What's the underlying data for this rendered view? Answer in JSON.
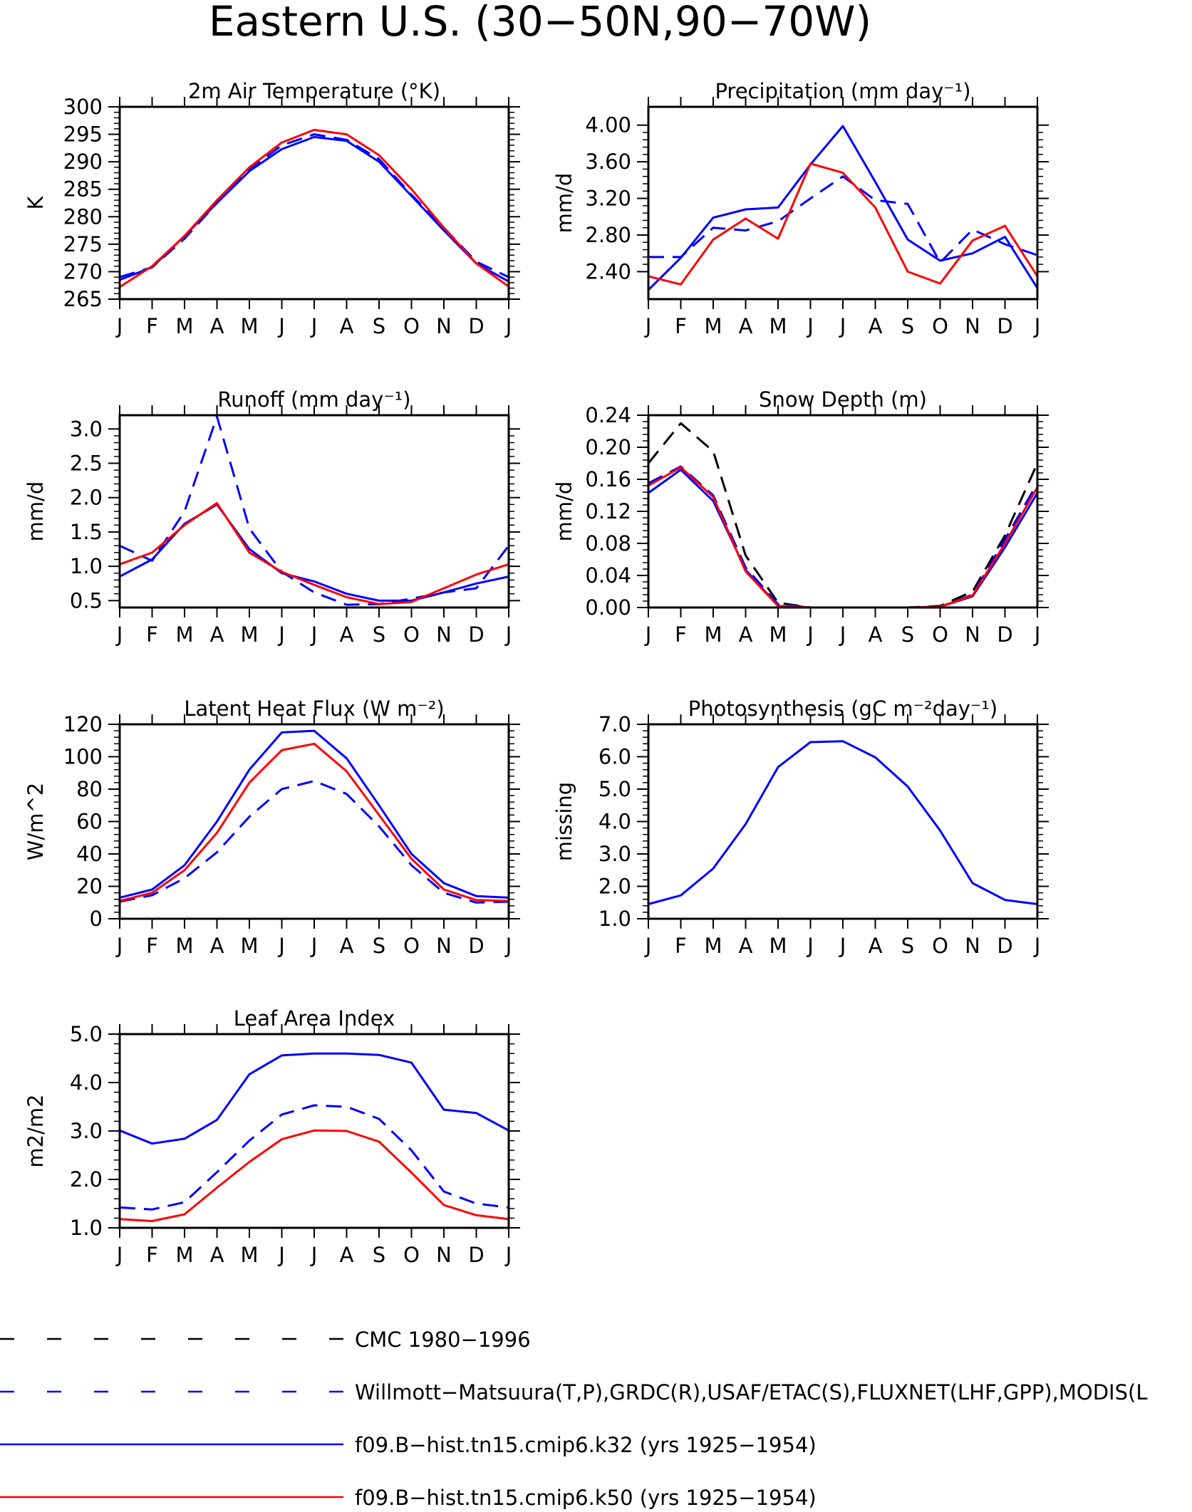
{
  "figure": {
    "title": "Eastern U.S. (30−50N,90−70W)",
    "months": [
      "J",
      "F",
      "M",
      "A",
      "M",
      "J",
      "J",
      "A",
      "S",
      "O",
      "N",
      "D",
      "J"
    ]
  },
  "colors": {
    "red": "#ff0000",
    "blue": "#0000ff",
    "black": "#000000"
  },
  "legend": {
    "position": "bottom",
    "entries": [
      {
        "label": "CMC 1980−1996",
        "color": "#000000",
        "dash": true
      },
      {
        "label": "Willmott−Matsuura(T,P),GRDC(R),USAF/ETAC(S),FLUXNET(LHF,GPP),MODIS(L",
        "color": "#0000ff",
        "dash": true
      },
      {
        "label": "f09.B−hist.tn15.cmip6.k32 (yrs 1925−1954)",
        "color": "#0000ff",
        "dash": false
      },
      {
        "label": "f09.B−hist.tn15.cmip6.k50 (yrs 1925−1954)",
        "color": "#ff0000",
        "dash": false
      }
    ]
  },
  "chart_data": [
    {
      "type": "line",
      "title": "2m Air Temperature (°K)",
      "ylabel": "K",
      "ylim": [
        265,
        300
      ],
      "yticks": [
        265,
        270,
        275,
        280,
        285,
        290,
        295,
        300
      ],
      "yticklabels": [
        "265",
        "270",
        "275",
        "280",
        "285",
        "290",
        "295",
        "300"
      ],
      "categories": [
        "J",
        "F",
        "M",
        "A",
        "M",
        "J",
        "J",
        "A",
        "S",
        "O",
        "N",
        "D",
        "J"
      ],
      "series": [
        {
          "color": "#0000ff",
          "dash": true,
          "values": [
            269,
            270.8,
            276,
            282.5,
            288.5,
            293,
            295,
            294,
            290.5,
            284,
            278,
            271.8,
            269
          ]
        },
        {
          "color": "#0000ff",
          "dash": false,
          "values": [
            268.5,
            270.8,
            276.5,
            282.5,
            288.3,
            292.3,
            294.5,
            293.8,
            290,
            283.8,
            277.5,
            271.5,
            268.2
          ]
        },
        {
          "color": "#ff0000",
          "dash": false,
          "values": [
            267.2,
            271,
            276.5,
            283,
            289,
            293.5,
            295.8,
            295,
            291.2,
            285,
            278,
            271.5,
            267.3
          ]
        }
      ]
    },
    {
      "type": "line",
      "title": "Precipitation (mm day⁻¹)",
      "ylabel": "mm/d",
      "ylim": [
        2.1,
        4.2
      ],
      "yticks": [
        2.4,
        2.8,
        3.2,
        3.6,
        4.0
      ],
      "yticklabels": [
        "2.40",
        "2.80",
        "3.20",
        "3.60",
        "4.00"
      ],
      "categories": [
        "J",
        "F",
        "M",
        "A",
        "M",
        "J",
        "J",
        "A",
        "S",
        "O",
        "N",
        "D",
        "J"
      ],
      "series": [
        {
          "color": "#0000ff",
          "dash": true,
          "values": [
            2.56,
            2.56,
            2.88,
            2.85,
            2.95,
            3.2,
            3.44,
            3.18,
            3.14,
            2.5,
            2.86,
            2.7,
            2.58
          ]
        },
        {
          "color": "#0000ff",
          "dash": false,
          "values": [
            2.2,
            2.55,
            2.99,
            3.08,
            3.1,
            3.57,
            3.99,
            3.38,
            2.75,
            2.52,
            2.6,
            2.78,
            2.22
          ]
        },
        {
          "color": "#ff0000",
          "dash": false,
          "values": [
            2.35,
            2.26,
            2.75,
            2.98,
            2.76,
            3.58,
            3.48,
            3.1,
            2.4,
            2.27,
            2.74,
            2.9,
            2.35
          ]
        }
      ]
    },
    {
      "type": "line",
      "title": "Runoff (mm day⁻¹)",
      "ylabel": "mm/d",
      "ylim": [
        0.4,
        3.2
      ],
      "yticks": [
        0.5,
        1.0,
        1.5,
        2.0,
        2.5,
        3.0
      ],
      "yticklabels": [
        "0.5",
        "1.0",
        "1.5",
        "2.0",
        "2.5",
        "3.0"
      ],
      "categories": [
        "J",
        "F",
        "M",
        "A",
        "M",
        "J",
        "J",
        "A",
        "S",
        "O",
        "N",
        "D",
        "J"
      ],
      "series": [
        {
          "color": "#0000ff",
          "dash": true,
          "values": [
            1.3,
            1.08,
            1.8,
            3.18,
            1.55,
            0.92,
            0.62,
            0.44,
            0.45,
            0.53,
            0.62,
            0.68,
            1.3
          ]
        },
        {
          "color": "#0000ff",
          "dash": false,
          "values": [
            0.85,
            1.1,
            1.62,
            1.9,
            1.25,
            0.9,
            0.78,
            0.6,
            0.5,
            0.5,
            0.62,
            0.75,
            0.85
          ]
        },
        {
          "color": "#ff0000",
          "dash": false,
          "values": [
            1.03,
            1.2,
            1.6,
            1.92,
            1.2,
            0.92,
            0.73,
            0.55,
            0.45,
            0.48,
            0.68,
            0.88,
            1.03
          ]
        }
      ]
    },
    {
      "type": "line",
      "title": "Snow Depth (m)",
      "ylabel": "mm/d",
      "ylim": [
        0,
        0.24
      ],
      "yticks": [
        0,
        0.04,
        0.08,
        0.12,
        0.16,
        0.2,
        0.24
      ],
      "yticklabels": [
        "0.00",
        "0.04",
        "0.08",
        "0.12",
        "0.16",
        "0.20",
        "0.24"
      ],
      "categories": [
        "J",
        "F",
        "M",
        "A",
        "M",
        "J",
        "J",
        "A",
        "S",
        "O",
        "N",
        "D",
        "J"
      ],
      "series": [
        {
          "color": "#000000",
          "dash": true,
          "values": [
            0.18,
            0.23,
            0.195,
            0.065,
            0.006,
            0.0,
            0.0,
            0.0,
            0.0,
            0.002,
            0.02,
            0.09,
            0.18
          ]
        },
        {
          "color": "#0000ff",
          "dash": true,
          "values": [
            0.155,
            0.176,
            0.14,
            0.05,
            0.004,
            0.0,
            0.0,
            0.0,
            0.0,
            0.001,
            0.016,
            0.085,
            0.155
          ]
        },
        {
          "color": "#0000ff",
          "dash": false,
          "values": [
            0.143,
            0.172,
            0.133,
            0.047,
            0.002,
            0.0,
            0.0,
            0.0,
            0.0,
            0.001,
            0.014,
            0.075,
            0.143
          ]
        },
        {
          "color": "#ff0000",
          "dash": false,
          "values": [
            0.152,
            0.175,
            0.138,
            0.045,
            0.002,
            0.0,
            0.0,
            0.0,
            0.0,
            0.001,
            0.015,
            0.08,
            0.15
          ]
        }
      ]
    },
    {
      "type": "line",
      "title": "Latent Heat Flux (W m⁻²)",
      "ylabel": "W/m^2",
      "ylim": [
        0,
        120
      ],
      "yticks": [
        0,
        20,
        40,
        60,
        80,
        100,
        120
      ],
      "yticklabels": [
        "0",
        "20",
        "40",
        "60",
        "80",
        "100",
        "120"
      ],
      "categories": [
        "J",
        "F",
        "M",
        "A",
        "M",
        "J",
        "J",
        "A",
        "S",
        "O",
        "N",
        "D",
        "J"
      ],
      "series": [
        {
          "color": "#0000ff",
          "dash": true,
          "values": [
            10.5,
            14.5,
            25,
            41,
            63,
            80,
            85,
            77,
            57,
            33,
            16,
            10,
            10.5
          ]
        },
        {
          "color": "#0000ff",
          "dash": false,
          "values": [
            13,
            18,
            33,
            60,
            92,
            115,
            116,
            99,
            70,
            40,
            22,
            14,
            13
          ]
        },
        {
          "color": "#ff0000",
          "dash": false,
          "values": [
            11,
            16,
            30,
            53,
            84,
            104,
            108,
            91,
            64,
            37,
            18,
            11.5,
            11
          ]
        }
      ]
    },
    {
      "type": "line",
      "title": "Photosynthesis (gC m⁻²day⁻¹)",
      "ylabel": "missing",
      "ylim": [
        1.0,
        7.0
      ],
      "yticks": [
        1,
        2,
        3,
        4,
        5,
        6,
        7
      ],
      "yticklabels": [
        "1.0",
        "2.0",
        "3.0",
        "4.0",
        "5.0",
        "6.0",
        "7.0"
      ],
      "categories": [
        "J",
        "F",
        "M",
        "A",
        "M",
        "J",
        "J",
        "A",
        "S",
        "O",
        "N",
        "D",
        "J"
      ],
      "series": [
        {
          "color": "#0000ff",
          "dash": false,
          "values": [
            1.45,
            1.72,
            2.55,
            3.92,
            5.68,
            6.45,
            6.48,
            5.98,
            5.08,
            3.72,
            2.1,
            1.58,
            1.45
          ]
        }
      ]
    },
    {
      "type": "line",
      "title": "Leaf Area Index",
      "ylabel": "m2/m2",
      "ylim": [
        1.0,
        5.0
      ],
      "yticks": [
        1,
        2,
        3,
        4,
        5
      ],
      "yticklabels": [
        "1.0",
        "2.0",
        "3.0",
        "4.0",
        "5.0"
      ],
      "categories": [
        "J",
        "F",
        "M",
        "A",
        "M",
        "J",
        "J",
        "A",
        "S",
        "O",
        "N",
        "D",
        "J"
      ],
      "series": [
        {
          "color": "#0000ff",
          "dash": true,
          "values": [
            1.42,
            1.38,
            1.53,
            2.15,
            2.8,
            3.34,
            3.53,
            3.5,
            3.25,
            2.6,
            1.75,
            1.5,
            1.42
          ]
        },
        {
          "color": "#0000ff",
          "dash": false,
          "values": [
            3.01,
            2.74,
            2.84,
            3.23,
            4.17,
            4.56,
            4.6,
            4.6,
            4.57,
            4.41,
            3.44,
            3.37,
            3.01
          ]
        },
        {
          "color": "#ff0000",
          "dash": false,
          "values": [
            1.18,
            1.14,
            1.28,
            1.83,
            2.36,
            2.83,
            3.01,
            3.0,
            2.78,
            2.14,
            1.47,
            1.26,
            1.18
          ]
        }
      ]
    }
  ]
}
